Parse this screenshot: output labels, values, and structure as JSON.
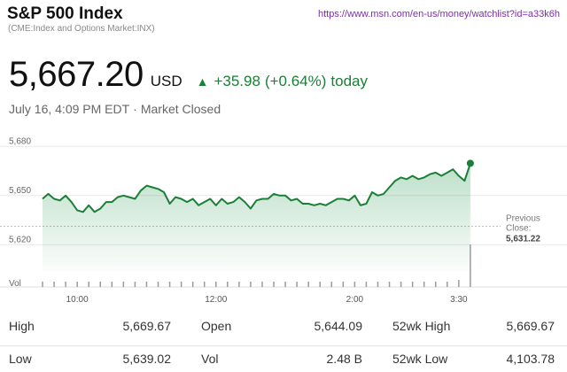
{
  "header": {
    "title": "S&P 500 Index",
    "subtitle": "(CME:Index and Options Market:INX)",
    "url": "https://www.msn.com/en-us/money/watchlist?id=a33k6h"
  },
  "quote": {
    "price": "5,667.20",
    "currency": "USD",
    "change": "+35.98",
    "change_pct": "(+0.64%)",
    "change_suffix": "today",
    "date_time": "July 16, 4:09 PM EDT",
    "separator": "·",
    "market_status": "Market Closed",
    "up_color": "#1a7f37"
  },
  "chart_data": {
    "type": "area",
    "y_ticks": [
      "5,680",
      "5,650",
      "5,620"
    ],
    "y_tick_values": [
      5680,
      5650,
      5620
    ],
    "ylim": [
      5605,
      5685
    ],
    "x_ticks": [
      "10:00",
      "12:00",
      "2:00",
      "3:30"
    ],
    "x_tick_minutes": [
      30,
      150,
      270,
      360
    ],
    "x_range_minutes": [
      0,
      390
    ],
    "volume_label": "Vol",
    "previous_close_label_1": "Previous",
    "previous_close_label_2": "Close:",
    "previous_close_value": "5,631.22",
    "previous_close": 5631.22,
    "line_color": "#1a7f37",
    "series": [
      {
        "x": [
          0,
          5,
          10,
          15,
          20,
          25,
          30,
          35,
          40,
          45,
          50,
          55,
          60,
          65,
          70,
          75,
          80,
          85,
          90,
          95,
          100,
          105,
          110,
          115,
          120,
          125,
          130,
          135,
          140,
          145,
          150,
          155,
          160,
          165,
          170,
          175,
          180,
          185,
          190,
          195,
          200,
          205,
          210,
          215,
          220,
          225,
          230,
          235,
          240,
          245,
          250,
          255,
          260,
          265,
          270,
          275,
          280,
          285,
          290,
          295,
          300,
          305,
          310,
          315,
          320,
          325,
          330,
          335,
          340,
          345,
          350,
          355,
          360,
          365,
          370
        ],
        "y": [
          5648,
          5651,
          5648,
          5647,
          5650,
          5646,
          5641,
          5640,
          5644,
          5640,
          5642,
          5646,
          5646,
          5649,
          5650,
          5649,
          5648,
          5653,
          5656,
          5655,
          5654,
          5652,
          5645,
          5649,
          5648,
          5646,
          5648,
          5644,
          5646,
          5648,
          5644,
          5648,
          5645,
          5646,
          5649,
          5646,
          5642,
          5647,
          5648,
          5648,
          5651,
          5650,
          5650,
          5647,
          5648,
          5645,
          5645,
          5644,
          5645,
          5644,
          5646,
          5648,
          5648,
          5647,
          5650,
          5644,
          5645,
          5652,
          5650,
          5651,
          5655,
          5659,
          5661,
          5660,
          5662,
          5660,
          5661,
          5663,
          5664,
          5662,
          5664,
          5666,
          5662,
          5659,
          5669.67
        ]
      }
    ]
  },
  "stats": {
    "row1": [
      {
        "label": "High",
        "value": "5,669.67"
      },
      {
        "label": "Open",
        "value": "5,644.09"
      },
      {
        "label": "52wk High",
        "value": "5,669.67"
      }
    ],
    "row2": [
      {
        "label": "Low",
        "value": "5,639.02"
      },
      {
        "label": "Vol",
        "value": "2.48 B"
      },
      {
        "label": "52wk Low",
        "value": "4,103.78"
      }
    ]
  }
}
